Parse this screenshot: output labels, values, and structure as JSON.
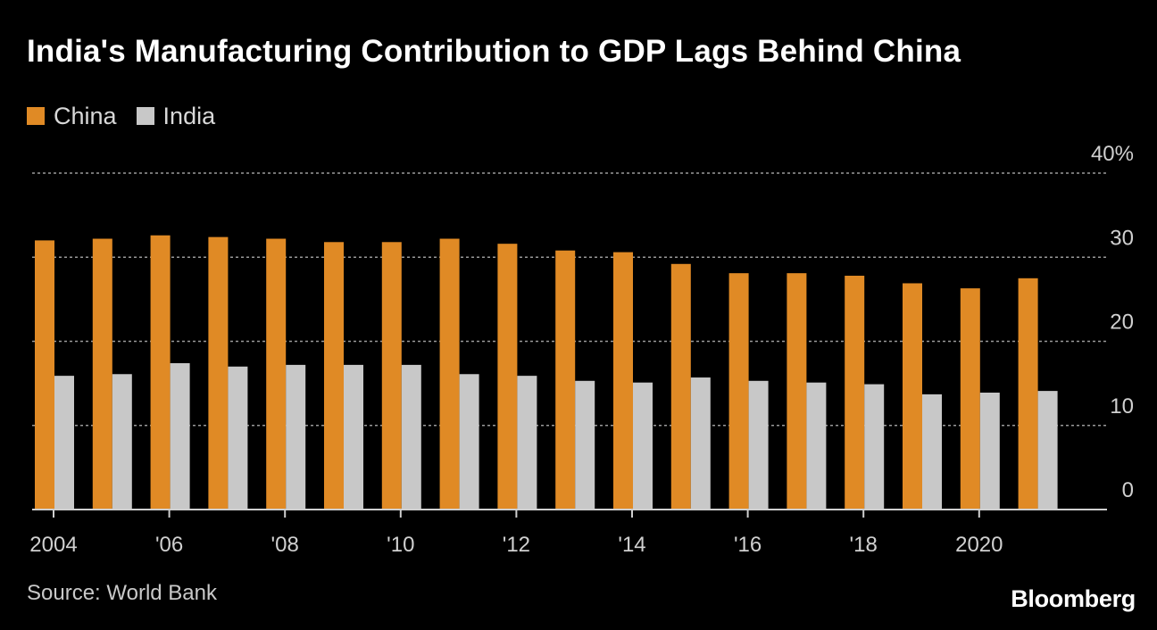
{
  "chart_data": {
    "type": "bar",
    "title": "India's Manufacturing Contribution to GDP Lags Behind China",
    "x": [
      2004,
      2005,
      2006,
      2007,
      2008,
      2009,
      2010,
      2011,
      2012,
      2013,
      2014,
      2015,
      2016,
      2017,
      2018,
      2019,
      2020,
      2021
    ],
    "x_tick_labels": [
      {
        "x": 2004,
        "label": "2004"
      },
      {
        "x": 2006,
        "label": "'06"
      },
      {
        "x": 2008,
        "label": "'08"
      },
      {
        "x": 2010,
        "label": "'10"
      },
      {
        "x": 2012,
        "label": "'12"
      },
      {
        "x": 2014,
        "label": "'14"
      },
      {
        "x": 2016,
        "label": "'16"
      },
      {
        "x": 2018,
        "label": "'18"
      },
      {
        "x": 2020,
        "label": "2020"
      }
    ],
    "series": [
      {
        "name": "China",
        "color": "#e08a25",
        "values": [
          32.0,
          32.2,
          32.6,
          32.4,
          32.2,
          31.8,
          31.8,
          32.2,
          31.6,
          30.8,
          30.6,
          29.2,
          28.1,
          28.1,
          27.8,
          26.9,
          26.3,
          27.5
        ]
      },
      {
        "name": "India",
        "color": "#c8c8c8",
        "values": [
          15.9,
          16.1,
          17.4,
          17.0,
          17.2,
          17.2,
          17.2,
          16.1,
          15.9,
          15.3,
          15.1,
          15.7,
          15.3,
          15.1,
          14.9,
          13.7,
          13.9,
          14.1
        ]
      }
    ],
    "y_ticks": [
      {
        "value": 0,
        "label": "0"
      },
      {
        "value": 10,
        "label": "10"
      },
      {
        "value": 20,
        "label": "20"
      },
      {
        "value": 30,
        "label": "30"
      },
      {
        "value": 40,
        "label": "40%"
      }
    ],
    "ylim": [
      0,
      40
    ],
    "grid": true,
    "legend_position": "top-left",
    "y_axis_side": "right"
  },
  "footer": {
    "source": "Source: World Bank",
    "brand": "Bloomberg"
  },
  "colors": {
    "background": "#000000",
    "gridline": "#9a9a9a",
    "axis": "#cfcfcf"
  }
}
